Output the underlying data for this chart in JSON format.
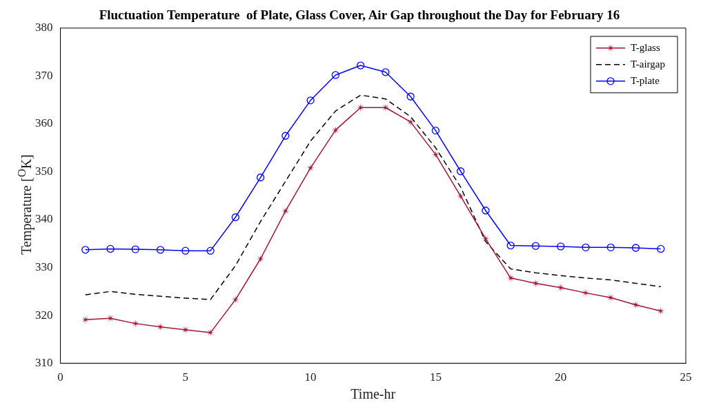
{
  "chart_data": {
    "type": "line",
    "title": "Fluctuation Temperature  of Plate, Glass Cover, Air Gap throughout the Day for February 16",
    "xlabel": "Time-hr",
    "ylabel": "Temperature  [$^{O}$K]",
    "x": [
      1,
      2,
      3,
      4,
      5,
      6,
      7,
      8,
      9,
      10,
      11,
      12,
      13,
      14,
      15,
      16,
      17,
      18,
      19,
      20,
      21,
      22,
      23,
      24
    ],
    "series": [
      {
        "name": "T-glass",
        "color": "#a2142f",
        "marker": "star",
        "line_style": "solid",
        "values": [
          319.1,
          319.4,
          318.3,
          317.6,
          317.0,
          316.4,
          323.3,
          331.8,
          341.8,
          350.8,
          358.7,
          363.4,
          363.4,
          360.4,
          353.6,
          344.9,
          336.0,
          327.8,
          326.7,
          325.8,
          324.7,
          323.7,
          322.2,
          320.9
        ]
      },
      {
        "name": "T-airgap",
        "color": "#000000",
        "marker": "none",
        "line_style": "dashed",
        "values": [
          324.3,
          325.0,
          324.4,
          324.0,
          323.6,
          323.3,
          330.4,
          339.6,
          348.0,
          356.4,
          362.7,
          366.0,
          365.2,
          361.5,
          355.0,
          346.8,
          335.4,
          329.7,
          328.9,
          328.3,
          327.8,
          327.4,
          326.7,
          326.0
        ]
      },
      {
        "name": "T-plate",
        "color": "#0000ff",
        "marker": "circle",
        "line_style": "solid",
        "values": [
          333.7,
          333.9,
          333.8,
          333.7,
          333.5,
          333.5,
          340.5,
          348.8,
          357.5,
          364.9,
          370.2,
          372.2,
          370.8,
          365.7,
          358.6,
          350.1,
          341.9,
          334.6,
          334.5,
          334.4,
          334.2,
          334.2,
          334.1,
          333.9
        ]
      }
    ],
    "xlim": [
      0,
      25
    ],
    "xticks": [
      0,
      5,
      10,
      15,
      20,
      25
    ],
    "ylim": [
      310,
      380
    ],
    "yticks": [
      310,
      320,
      330,
      340,
      350,
      360,
      370,
      380
    ],
    "grid": false,
    "legend": "top right"
  }
}
